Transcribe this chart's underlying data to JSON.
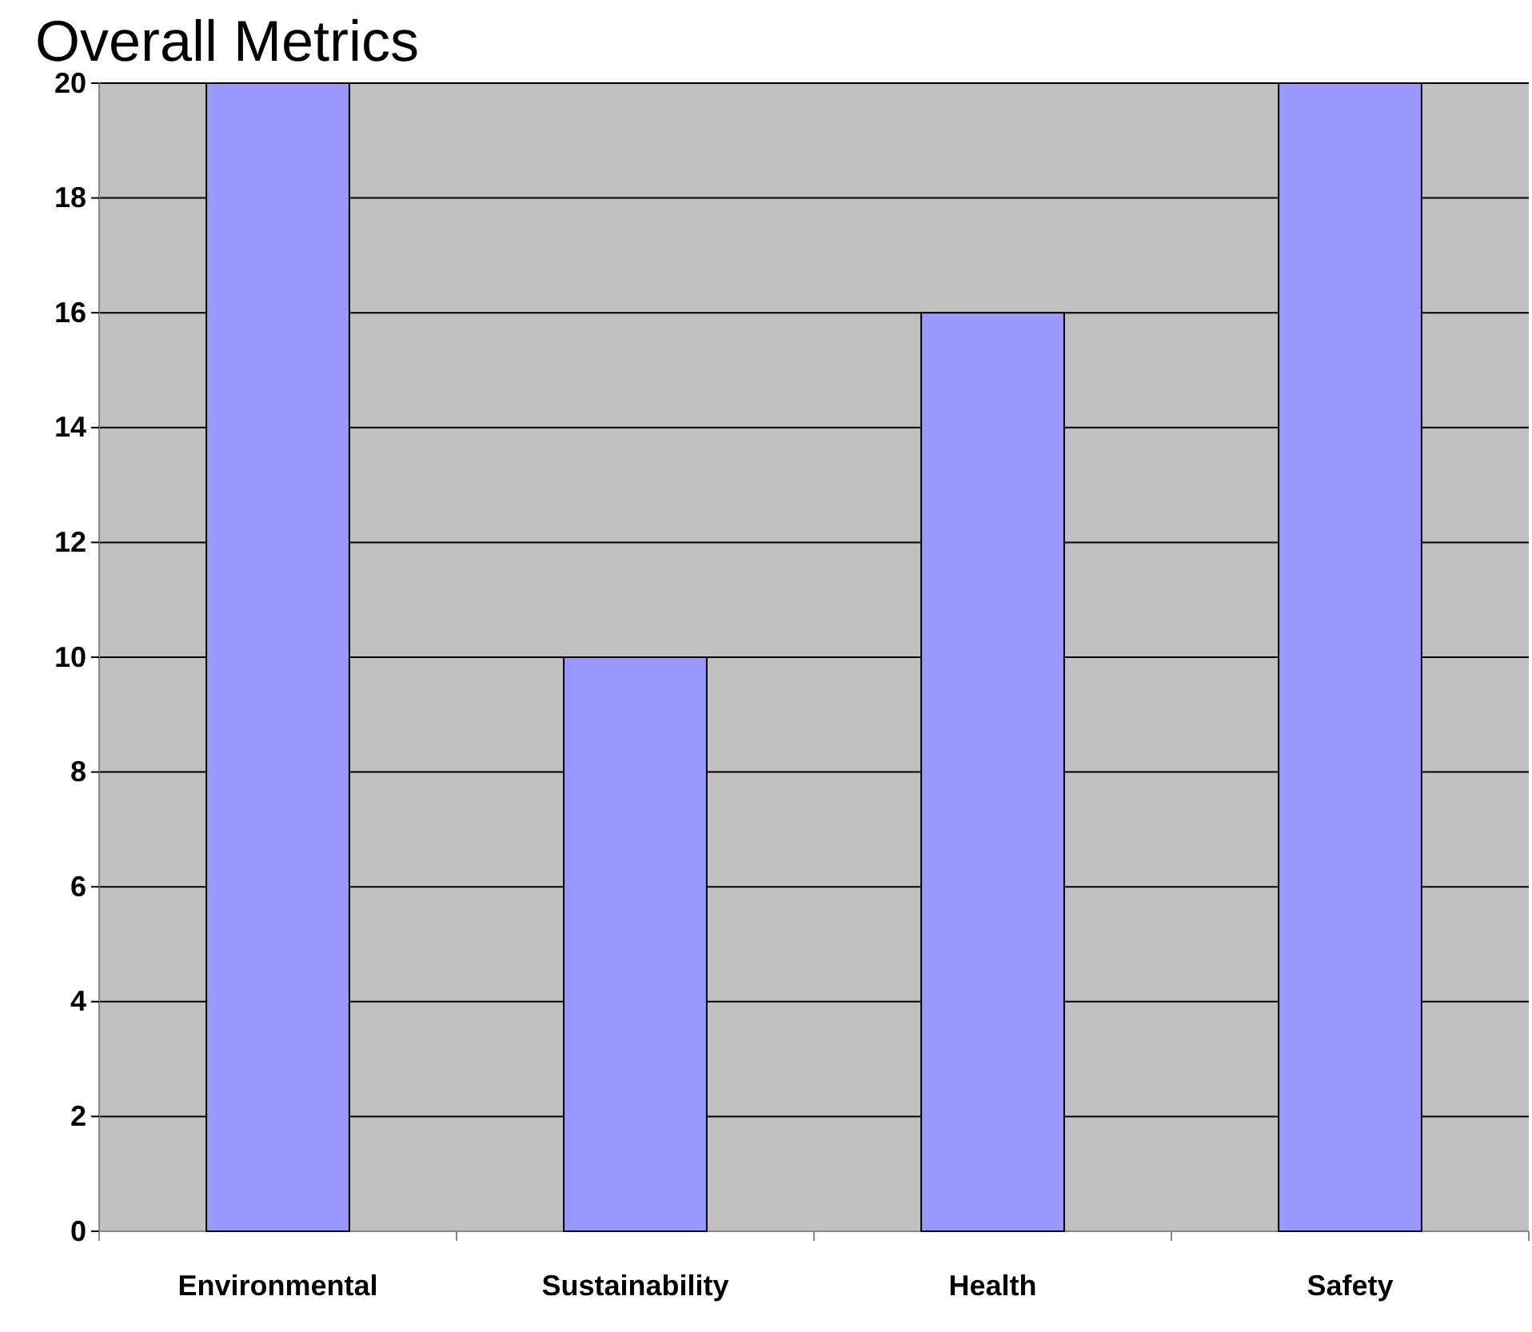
{
  "chart_data": {
    "type": "bar",
    "title": "Overall Metrics",
    "categories": [
      "Environmental",
      "Sustainability",
      "Health",
      "Safety"
    ],
    "values": [
      20,
      10,
      16,
      20
    ],
    "color": "#9999ff",
    "ylim": [
      0,
      20
    ],
    "yticks": [
      0,
      2,
      4,
      6,
      8,
      10,
      12,
      14,
      16,
      18,
      20
    ],
    "grid": "y"
  }
}
